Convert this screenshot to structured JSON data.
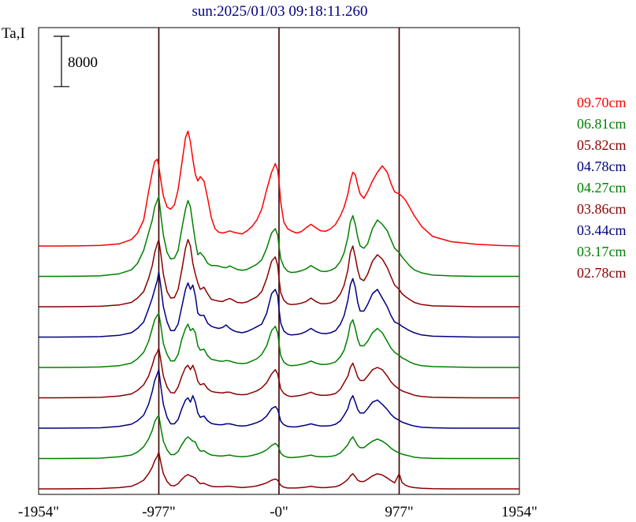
{
  "chart_data": {
    "type": "line",
    "title": "sun:2025/01/03 09:18:11.260",
    "ylabel": "Ta,I",
    "scale_bar_label": "8000",
    "scale_bar_value": 8000,
    "xlim": [
      -1954,
      1954
    ],
    "x_tick_values": [
      -1954,
      -977,
      0,
      977,
      1954
    ],
    "x_tick_labels": [
      "-1954\"",
      "-977\"",
      "-0\"",
      "977\"",
      "1954\""
    ],
    "vertical_lines_x": [
      -977,
      0,
      977
    ],
    "offset_per_trace": 7000,
    "trace_unit": "Ta",
    "x": [
      -1954,
      -1800,
      -1600,
      -1450,
      -1300,
      -1200,
      -1150,
      -1100,
      -1060,
      -1030,
      -1010,
      -990,
      -977,
      -960,
      -940,
      -910,
      -880,
      -850,
      -820,
      -790,
      -760,
      -740,
      -720,
      -700,
      -680,
      -660,
      -640,
      -610,
      -580,
      -550,
      -520,
      -490,
      -460,
      -430,
      -400,
      -370,
      -340,
      -300,
      -260,
      -220,
      -180,
      -140,
      -100,
      -60,
      -30,
      -10,
      0,
      15,
      40,
      70,
      100,
      140,
      180,
      220,
      260,
      300,
      340,
      380,
      420,
      460,
      500,
      530,
      560,
      580,
      600,
      620,
      640,
      660,
      690,
      720,
      760,
      800,
      840,
      880,
      910,
      940,
      977,
      1000,
      1030,
      1060,
      1100,
      1160,
      1250,
      1400,
      1600,
      1800,
      1954
    ],
    "series": [
      {
        "name": "09.70cm",
        "color": "#ff0000",
        "values": [
          0,
          0,
          50,
          150,
          500,
          1500,
          3000,
          6000,
          12500,
          17000,
          19500,
          20000,
          18500,
          15000,
          11500,
          9000,
          8500,
          9500,
          13000,
          19000,
          25000,
          26500,
          24000,
          20000,
          16500,
          15000,
          16000,
          15000,
          11000,
          6500,
          4000,
          3200,
          3000,
          3200,
          3500,
          3200,
          3000,
          2800,
          3500,
          4500,
          6000,
          8500,
          13000,
          17000,
          19000,
          17500,
          15000,
          10000,
          5500,
          4000,
          3500,
          3000,
          3300,
          4200,
          5000,
          4200,
          3500,
          3400,
          4000,
          5000,
          7000,
          9000,
          12000,
          15000,
          17000,
          16500,
          14000,
          12000,
          11000,
          12500,
          15000,
          17000,
          18500,
          17000,
          14500,
          12500,
          12000,
          11500,
          10500,
          9000,
          7000,
          4500,
          2200,
          1000,
          400,
          100,
          0
        ]
      },
      {
        "name": "06.81cm",
        "color": "#008000",
        "values": [
          0,
          0,
          40,
          150,
          600,
          1500,
          3000,
          6000,
          10000,
          13000,
          16000,
          17500,
          18500,
          14000,
          9500,
          5500,
          4000,
          4200,
          6000,
          11000,
          15500,
          17500,
          16000,
          12000,
          8000,
          5000,
          5500,
          4500,
          3000,
          2500,
          2500,
          2400,
          2100,
          2000,
          2400,
          2000,
          1600,
          1400,
          1600,
          2200,
          2800,
          3800,
          6500,
          10000,
          11000,
          9500,
          7000,
          4000,
          2200,
          1200,
          900,
          1000,
          1300,
          1700,
          2500,
          1800,
          1200,
          1100,
          1400,
          2000,
          3500,
          5500,
          9000,
          12500,
          14000,
          12000,
          9000,
          7000,
          6500,
          7500,
          11000,
          13000,
          12000,
          10500,
          8500,
          6500,
          5500,
          4500,
          3500,
          2500,
          1500,
          800,
          300,
          100,
          0,
          0,
          0
        ]
      },
      {
        "name": "05.82cm",
        "color": "#8b0000",
        "values": [
          0,
          0,
          40,
          100,
          400,
          1000,
          2000,
          3500,
          6500,
          9500,
          12500,
          14500,
          15500,
          12000,
          7500,
          3500,
          2000,
          2100,
          4000,
          8500,
          13500,
          15500,
          14000,
          10000,
          7500,
          5500,
          4000,
          4500,
          3000,
          1700,
          1500,
          1300,
          1200,
          1600,
          1900,
          1500,
          1000,
          900,
          1100,
          1700,
          2300,
          3500,
          6500,
          10500,
          11500,
          9500,
          6500,
          3200,
          1500,
          700,
          500,
          600,
          800,
          1200,
          2000,
          1200,
          700,
          700,
          900,
          1500,
          3000,
          5000,
          8500,
          12500,
          14000,
          11500,
          8500,
          6500,
          6000,
          7500,
          10500,
          12000,
          11000,
          9000,
          7000,
          5000,
          4000,
          3000,
          2300,
          1700,
          1000,
          500,
          200,
          100,
          0,
          0,
          0
        ]
      },
      {
        "name": "04.78cm",
        "color": "#000080",
        "values": [
          0,
          0,
          40,
          100,
          400,
          1000,
          2000,
          3500,
          6500,
          9000,
          11000,
          13000,
          15000,
          11500,
          7000,
          3500,
          1500,
          1500,
          3000,
          7000,
          11000,
          12500,
          11000,
          12000,
          9500,
          5500,
          5000,
          5000,
          3200,
          2500,
          2200,
          2000,
          2200,
          2800,
          2000,
          1500,
          1200,
          1000,
          1300,
          1800,
          2400,
          3000,
          5500,
          10000,
          11000,
          9500,
          6500,
          3200,
          1400,
          700,
          500,
          600,
          800,
          1300,
          2000,
          1300,
          900,
          800,
          1000,
          1500,
          3000,
          5000,
          8500,
          12000,
          13500,
          11500,
          8000,
          6000,
          6000,
          7500,
          10000,
          11000,
          9000,
          7000,
          5000,
          3500,
          3000,
          2500,
          2000,
          1500,
          1000,
          500,
          200,
          100,
          0,
          0,
          0
        ]
      },
      {
        "name": "04.27cm",
        "color": "#008000",
        "values": [
          0,
          0,
          40,
          100,
          400,
          1000,
          2000,
          3500,
          6000,
          9000,
          11000,
          12000,
          12500,
          9500,
          5500,
          3000,
          1500,
          1500,
          3000,
          6500,
          9000,
          10000,
          8500,
          9000,
          8000,
          5000,
          4000,
          4200,
          2700,
          1900,
          1700,
          1500,
          1400,
          1600,
          1500,
          1200,
          1000,
          900,
          1000,
          1500,
          2000,
          3000,
          5000,
          8500,
          9500,
          8000,
          5500,
          2700,
          1200,
          600,
          400,
          500,
          700,
          1000,
          1500,
          1000,
          700,
          700,
          900,
          1300,
          2500,
          4000,
          7000,
          10000,
          11000,
          9000,
          6500,
          5000,
          5000,
          6000,
          8000,
          9000,
          8000,
          6000,
          4500,
          3500,
          2800,
          2200,
          1800,
          1300,
          800,
          400,
          200,
          100,
          0,
          0,
          0
        ]
      },
      {
        "name": "03.86cm",
        "color": "#8b0000",
        "values": [
          0,
          0,
          40,
          100,
          400,
          900,
          1700,
          3000,
          5000,
          7500,
          9500,
          10500,
          11500,
          8500,
          5000,
          2500,
          1200,
          1100,
          2500,
          5000,
          7000,
          7500,
          6500,
          7500,
          6000,
          3800,
          3000,
          3300,
          2100,
          1500,
          1300,
          1200,
          1100,
          1300,
          1300,
          1000,
          800,
          700,
          800,
          1200,
          1600,
          2300,
          3500,
          5500,
          6500,
          5500,
          4000,
          2000,
          1000,
          500,
          300,
          400,
          600,
          900,
          1300,
          800,
          600,
          600,
          700,
          1000,
          2000,
          3500,
          5000,
          7000,
          8000,
          6500,
          4800,
          4000,
          4000,
          5000,
          6500,
          7000,
          6500,
          5000,
          3700,
          2800,
          2000,
          1600,
          1300,
          1000,
          600,
          300,
          100,
          50,
          0,
          0,
          0
        ]
      },
      {
        "name": "03.44cm",
        "color": "#000080",
        "values": [
          0,
          0,
          40,
          100,
          400,
          900,
          1700,
          3000,
          5500,
          8500,
          11000,
          12500,
          13500,
          9500,
          5500,
          2500,
          1000,
          1000,
          2000,
          4500,
          6500,
          7000,
          6000,
          7500,
          6000,
          3500,
          2500,
          2800,
          1700,
          1100,
          900,
          800,
          800,
          1000,
          1000,
          800,
          600,
          500,
          600,
          900,
          1300,
          1800,
          2800,
          4500,
          5000,
          4300,
          3200,
          1600,
          800,
          400,
          300,
          300,
          500,
          700,
          1000,
          700,
          500,
          500,
          600,
          900,
          1700,
          3000,
          4500,
          6500,
          7500,
          6000,
          4300,
          3500,
          3500,
          4500,
          6000,
          6500,
          5500,
          4300,
          3200,
          2400,
          1800,
          1400,
          1100,
          800,
          500,
          200,
          100,
          0,
          0,
          0,
          0
        ]
      },
      {
        "name": "03.17cm",
        "color": "#008000",
        "values": [
          0,
          0,
          40,
          100,
          400,
          800,
          1500,
          2700,
          4500,
          6500,
          8500,
          9500,
          10000,
          7000,
          4000,
          2000,
          900,
          900,
          1600,
          3200,
          4500,
          5000,
          4500,
          4000,
          3800,
          2500,
          1700,
          1800,
          1200,
          800,
          700,
          600,
          600,
          700,
          800,
          600,
          500,
          400,
          500,
          700,
          1000,
          1400,
          2000,
          3000,
          3500,
          3000,
          2300,
          1200,
          600,
          300,
          200,
          300,
          400,
          600,
          800,
          500,
          400,
          400,
          500,
          700,
          1300,
          2200,
          3200,
          4300,
          5000,
          4000,
          3000,
          2500,
          2500,
          3200,
          4000,
          4500,
          4000,
          3200,
          2400,
          1800,
          1300,
          1000,
          800,
          600,
          300,
          150,
          50,
          0,
          0,
          0,
          0
        ]
      },
      {
        "name": "02.78cm",
        "color": "#8b0000",
        "values": [
          0,
          0,
          40,
          100,
          300,
          600,
          1200,
          2000,
          3500,
          5000,
          6500,
          7500,
          8500,
          6000,
          3500,
          1700,
          800,
          700,
          1200,
          2200,
          3000,
          3300,
          3000,
          2800,
          2500,
          1700,
          1200,
          1300,
          900,
          600,
          500,
          500,
          500,
          600,
          600,
          500,
          400,
          300,
          400,
          500,
          700,
          1000,
          1400,
          2000,
          2300,
          2000,
          1500,
          800,
          400,
          200,
          200,
          200,
          300,
          400,
          600,
          400,
          300,
          300,
          400,
          500,
          900,
          1500,
          2200,
          3000,
          3500,
          2800,
          2000,
          1700,
          1700,
          2200,
          3000,
          3500,
          3200,
          2500,
          1900,
          1400,
          3500,
          1500,
          800,
          500,
          300,
          150,
          50,
          0,
          0,
          0,
          0
        ]
      }
    ]
  }
}
